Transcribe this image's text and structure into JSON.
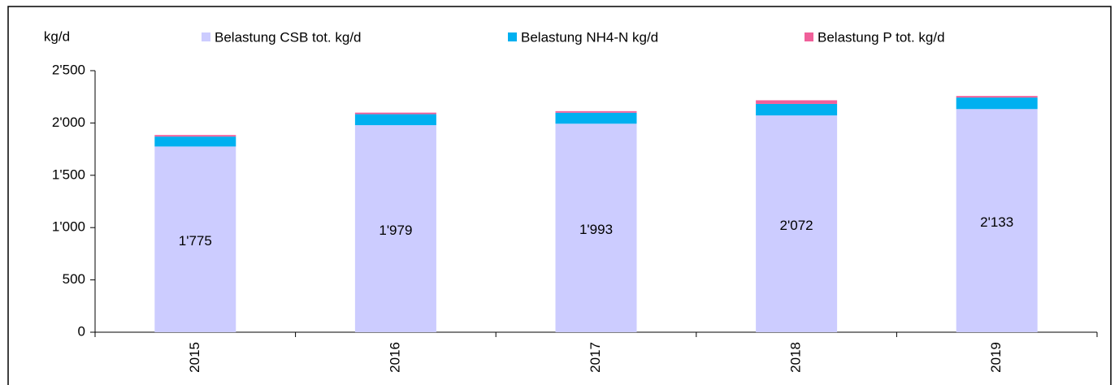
{
  "chart_data": {
    "type": "stacked_bar",
    "y_label": "kg/d",
    "categories": [
      "2015",
      "2016",
      "2017",
      "2018",
      "2019"
    ],
    "series": [
      {
        "name": "Belastung CSB tot. kg/d",
        "color": "#ccccff",
        "values": [
          1775,
          1979,
          1993,
          2072,
          2133
        ],
        "value_labels": [
          "1'775",
          "1'979",
          "1'993",
          "2'072",
          "2'133"
        ]
      },
      {
        "name": "Belastung NH4-N kg/d",
        "color": "#00b0f0",
        "values": [
          95,
          105,
          105,
          110,
          110
        ]
      },
      {
        "name": "Belastung P tot. kg/d",
        "color": "#f0609a",
        "values": [
          15,
          15,
          15,
          35,
          15
        ]
      }
    ],
    "ylim": [
      0,
      2500
    ],
    "yticks": [
      0,
      500,
      {
        "value": 1000,
        "label": "1'000"
      },
      {
        "value": 1500,
        "label": "1'500"
      },
      {
        "value": 2000,
        "label": "2'000"
      },
      {
        "value": 2500,
        "label": "2'500"
      }
    ],
    "grid": false,
    "legend": "top"
  }
}
